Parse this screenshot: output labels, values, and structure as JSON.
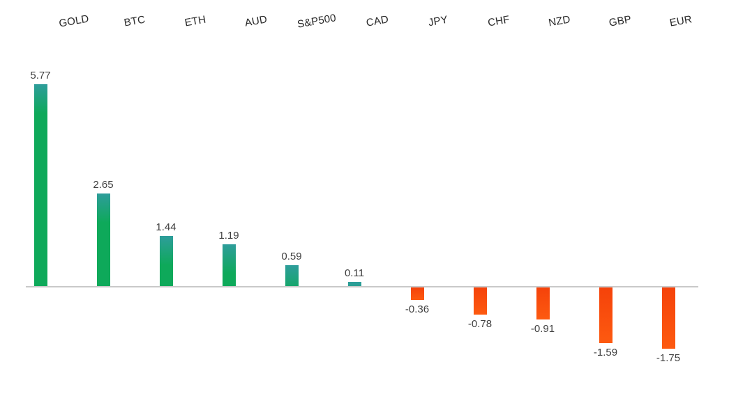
{
  "chart_data": {
    "type": "bar",
    "title": "",
    "xlabel": "",
    "ylabel": "",
    "categories": [
      "GOLD",
      "BTC",
      "ETH",
      "AUD",
      "S&P500",
      "CAD",
      "JPY",
      "CHF",
      "NZD",
      "GBP",
      "EUR"
    ],
    "values": [
      5.77,
      2.65,
      1.44,
      1.19,
      0.59,
      0.11,
      -0.36,
      -0.78,
      -0.91,
      -1.59,
      -1.75
    ],
    "value_labels": [
      "5.77",
      "2.65",
      "1.44",
      "1.19",
      "0.59",
      "0.11",
      "-0.36",
      "-0.78",
      "-0.91",
      "-1.59",
      "-1.75"
    ],
    "ylim": [
      -2.0,
      6.0
    ],
    "grid": false,
    "legend_position": "none",
    "axes": {
      "zero_line_visible": true,
      "y_axis_ticks_visible": false,
      "category_labels_position": "top",
      "category_label_rotation_deg": -10,
      "value_labels_position": "outside-end"
    },
    "colors": {
      "positive_bar_top": "#2e9d9b",
      "positive_bar_bottom": "#0ea95a",
      "negative_bar_top": "#f5420a",
      "negative_bar_bottom": "#fd5a10",
      "axis_line": "#c9c9c9",
      "value_label_text": "#3f3f3f",
      "category_label_text": "#262626",
      "background": "#ffffff"
    }
  }
}
